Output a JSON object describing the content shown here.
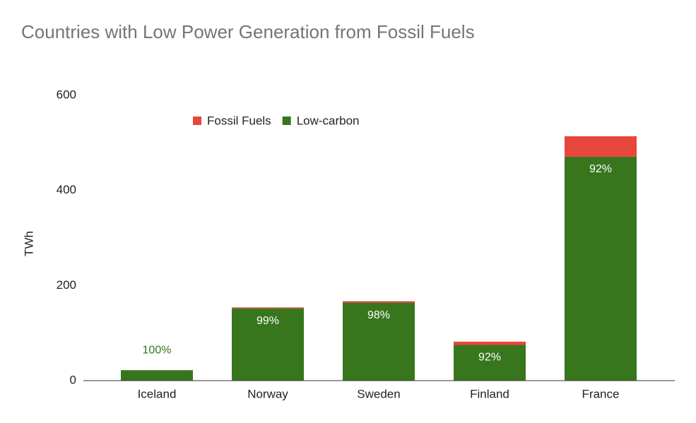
{
  "chart_data": {
    "type": "stacked_bar",
    "title": "Countries with Low Power Generation from Fossil Fuels",
    "y_label": "TWh",
    "categories": [
      "Iceland",
      "Norway",
      "Sweden",
      "Finland",
      "France"
    ],
    "series": [
      {
        "name": "Fossil Fuels",
        "color": "#e8453c",
        "values": [
          0,
          2,
          3,
          7,
          43
        ]
      },
      {
        "name": "Low-carbon",
        "color": "#38761d",
        "values": [
          22,
          152,
          164,
          75,
          471
        ]
      }
    ],
    "data_labels": [
      "100%",
      "99%",
      "98%",
      "92%",
      "92%"
    ],
    "ylim": [
      0,
      600
    ],
    "yticks": [
      0,
      200,
      400,
      600
    ],
    "grid": false,
    "legend": "top"
  }
}
